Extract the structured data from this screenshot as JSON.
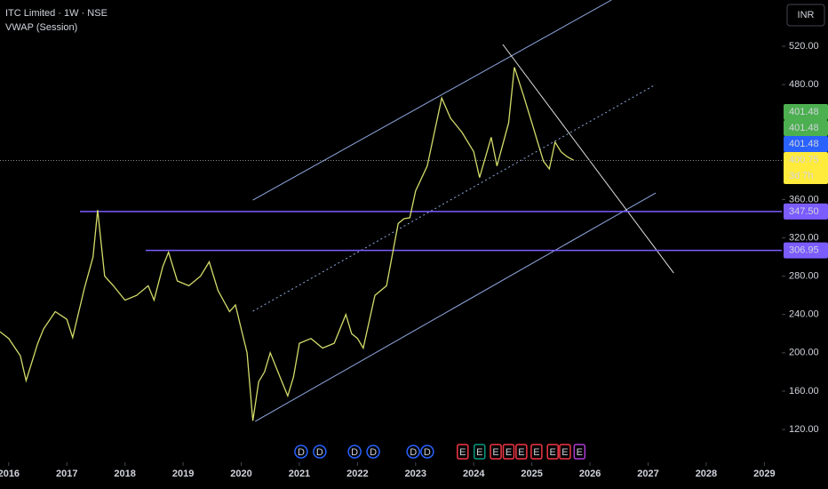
{
  "header": {
    "title": "ITC Limited · 1W · NSE",
    "indicator": "VWAP (Session)",
    "currency": "INR"
  },
  "chart_data": {
    "type": "line",
    "color": "#d4dc6a",
    "x": [
      2015.85,
      2016.0,
      2016.2,
      2016.3,
      2016.5,
      2016.6,
      2016.8,
      2017.0,
      2017.1,
      2017.3,
      2017.45,
      2017.53,
      2017.65,
      2017.8,
      2018.0,
      2018.2,
      2018.4,
      2018.5,
      2018.65,
      2018.75,
      2018.9,
      2019.1,
      2019.3,
      2019.45,
      2019.6,
      2019.8,
      2019.9,
      2020.0,
      2020.1,
      2020.2,
      2020.3,
      2020.4,
      2020.5,
      2020.7,
      2020.8,
      2020.9,
      2021.0,
      2021.2,
      2021.4,
      2021.6,
      2021.8,
      2021.9,
      2022.0,
      2022.1,
      2022.3,
      2022.5,
      2022.7,
      2022.8,
      2022.9,
      2023.0,
      2023.2,
      2023.45,
      2023.6,
      2023.8,
      2024.0,
      2024.1,
      2024.3,
      2024.4,
      2024.6,
      2024.7,
      2024.85,
      2025.0,
      2025.1,
      2025.2,
      2025.3,
      2025.4,
      2025.5,
      2025.6,
      2025.72
    ],
    "values": [
      222,
      215,
      197,
      171,
      210,
      225,
      243,
      235,
      216,
      267,
      300,
      349,
      280,
      270,
      255,
      260,
      270,
      255,
      290,
      305,
      275,
      270,
      280,
      295,
      265,
      243,
      250,
      225,
      200,
      129,
      170,
      180,
      200,
      170,
      155,
      175,
      210,
      215,
      205,
      210,
      240,
      220,
      215,
      205,
      260,
      270,
      335,
      340,
      341,
      369,
      395,
      466,
      445,
      430,
      410,
      383,
      425,
      395,
      440,
      498,
      470,
      440,
      420,
      400,
      392,
      420,
      410,
      405,
      401
    ],
    "xlim": [
      2015.85,
      2029.3
    ],
    "xticks": [
      2016,
      2017,
      2018,
      2019,
      2020,
      2021,
      2022,
      2023,
      2024,
      2025,
      2026,
      2027,
      2028,
      2029
    ],
    "ylim": [
      85.7,
      568.3
    ],
    "yticks": [
      {
        "value": 120,
        "label": "120.00"
      },
      {
        "value": 160,
        "label": "160.00"
      },
      {
        "value": 200,
        "label": "200.00"
      },
      {
        "value": 240,
        "label": "240.00"
      },
      {
        "value": 280,
        "label": "280.00"
      },
      {
        "value": 320,
        "label": "320.00"
      },
      {
        "value": 360,
        "label": "360.00"
      },
      {
        "value": 480,
        "label": "480.00"
      },
      {
        "value": 520,
        "label": "520.00"
      }
    ],
    "levels": [
      {
        "value": 347.5,
        "label": "347.50",
        "color": "#7b5cff"
      },
      {
        "value": 306.95,
        "label": "306.95",
        "color": "#7b5cff"
      }
    ],
    "price_labels": [
      {
        "value": 401.48,
        "color": "#4caf50"
      },
      {
        "value": 401.48,
        "color": "#4caf50"
      },
      {
        "value": 401.48,
        "color": "#2962ff"
      },
      {
        "value": 400.75,
        "sub": "3d 7h",
        "color": "#ffeb3b"
      }
    ],
    "trendlines": [
      {
        "x": [
          2020.2,
          2026.37
        ],
        "y": [
          359.4,
          568.3
        ],
        "color": "#8fa9e0",
        "dash": false
      },
      {
        "x": [
          2020.24,
          2027.13
        ],
        "y": [
          128.4,
          366.9
        ],
        "color": "#8fa9e0",
        "dash": false
      },
      {
        "x": [
          2020.2,
          2027.13
        ],
        "y": [
          243.4,
          480.1
        ],
        "color": "#8fa9e0",
        "dash": true
      },
      {
        "x": [
          2024.5,
          2027.44
        ],
        "y": [
          521.9,
          283.3
        ],
        "color": "#e0e0e0",
        "dash": false
      }
    ],
    "events": [
      {
        "x": 2021.03,
        "label": "D",
        "color": "#2962ff"
      },
      {
        "x": 2021.35,
        "label": "D",
        "color": "#2962ff"
      },
      {
        "x": 2021.95,
        "label": "D",
        "color": "#2962ff"
      },
      {
        "x": 2022.27,
        "label": "D",
        "color": "#2962ff"
      },
      {
        "x": 2022.96,
        "label": "D",
        "color": "#2962ff"
      },
      {
        "x": 2023.2,
        "label": "D",
        "color": "#2962ff"
      },
      {
        "x": 2023.81,
        "label": "E",
        "color": "#f23645"
      },
      {
        "x": 2024.1,
        "label": "E",
        "color": "#089981"
      },
      {
        "x": 2024.38,
        "label": "E",
        "color": "#f23645"
      },
      {
        "x": 2024.6,
        "label": "E",
        "color": "#f23645"
      },
      {
        "x": 2024.82,
        "label": "E",
        "color": "#f23645"
      },
      {
        "x": 2025.08,
        "label": "E",
        "color": "#f23645"
      },
      {
        "x": 2025.36,
        "label": "E",
        "color": "#f23645"
      },
      {
        "x": 2025.57,
        "label": "E",
        "color": "#f23645"
      },
      {
        "x": 2025.82,
        "label": "E",
        "color": "#b03bd8"
      }
    ]
  }
}
